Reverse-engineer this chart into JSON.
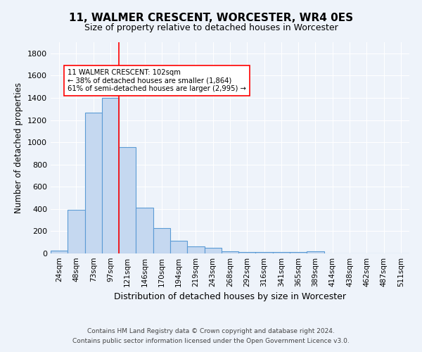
{
  "title": "11, WALMER CRESCENT, WORCESTER, WR4 0ES",
  "subtitle": "Size of property relative to detached houses in Worcester",
  "xlabel": "Distribution of detached houses by size in Worcester",
  "ylabel": "Number of detached properties",
  "categories": [
    "24sqm",
    "48sqm",
    "73sqm",
    "97sqm",
    "121sqm",
    "146sqm",
    "170sqm",
    "194sqm",
    "219sqm",
    "243sqm",
    "268sqm",
    "292sqm",
    "316sqm",
    "341sqm",
    "365sqm",
    "389sqm",
    "414sqm",
    "438sqm",
    "462sqm",
    "487sqm",
    "511sqm"
  ],
  "values": [
    25,
    390,
    1265,
    1400,
    955,
    410,
    230,
    115,
    65,
    50,
    20,
    10,
    10,
    10,
    10,
    20,
    0,
    0,
    0,
    0,
    0
  ],
  "bar_color": "#c5d8f0",
  "bar_edge_color": "#5b9bd5",
  "red_line_x": 3.5,
  "annotation_text_line1": "11 WALMER CRESCENT: 102sqm",
  "annotation_text_line2": "← 38% of detached houses are smaller (1,864)",
  "annotation_text_line3": "61% of semi-detached houses are larger (2,995) →",
  "footnote_line1": "Contains HM Land Registry data © Crown copyright and database right 2024.",
  "footnote_line2": "Contains public sector information licensed under the Open Government Licence v3.0.",
  "bg_color": "#eef3fa",
  "plot_bg_color": "#eef3fa",
  "ylim": [
    0,
    1900
  ],
  "yticks": [
    0,
    200,
    400,
    600,
    800,
    1000,
    1200,
    1400,
    1600,
    1800
  ]
}
